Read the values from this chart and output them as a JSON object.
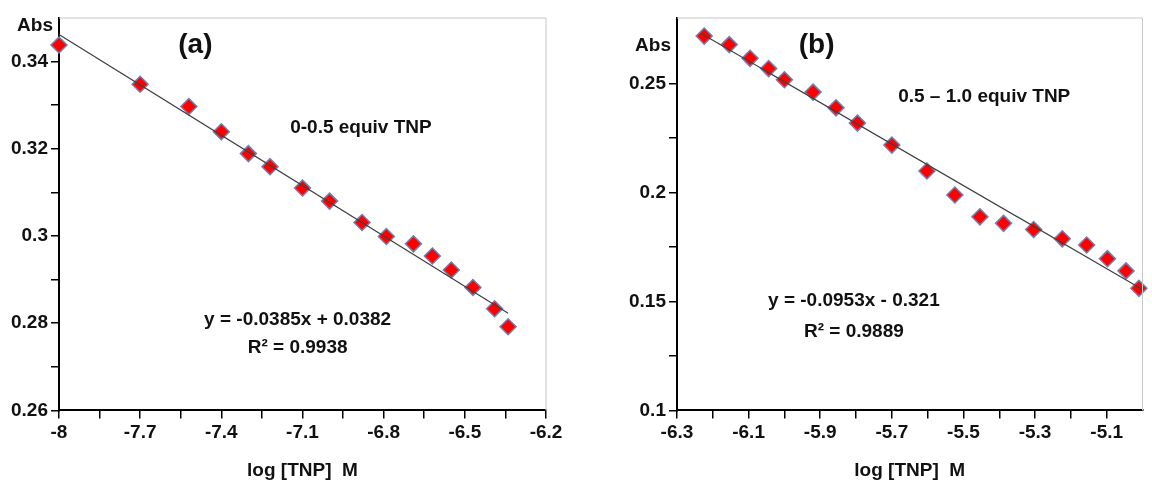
{
  "chart_data": [
    {
      "type": "scatter",
      "title": "(a)",
      "xlabel": "log [TNP]  M",
      "ylabel": "Abs",
      "xlim": [
        -8,
        -6.2
      ],
      "xticks": [
        -8,
        {
          "value": -7.85,
          "label": null
        },
        -7.7,
        {
          "value": -7.55,
          "label": null
        },
        -7.4,
        {
          "value": -7.25,
          "label": null
        },
        -7.1,
        {
          "value": -6.95,
          "label": null
        },
        -6.8,
        {
          "value": -6.65,
          "label": null
        },
        -6.5,
        {
          "value": -6.35,
          "label": null
        },
        -6.2
      ],
      "ylim": [
        0.26,
        0.35
      ],
      "yticks": [
        0.26,
        {
          "value": 0.27,
          "label": null
        },
        0.28,
        {
          "value": 0.29,
          "label": null
        },
        0.3,
        {
          "value": 0.31,
          "label": null
        },
        0.32,
        {
          "value": 0.33,
          "label": null
        },
        0.34
      ],
      "grid": false,
      "legend": false,
      "marker": "diamond",
      "series": [
        {
          "color": "#ff0000",
          "x": [
            -8,
            -7.7,
            -7.52,
            -7.4,
            -7.3,
            -7.22,
            -7.1,
            -7.0,
            -6.88,
            -6.79,
            -6.69,
            -6.62,
            -6.55,
            -6.47,
            -6.39,
            -6.34
          ],
          "values": [
            0.3438,
            0.3348,
            0.3297,
            0.3239,
            0.3189,
            0.3159,
            0.311,
            0.308,
            0.3031,
            0.2999,
            0.2982,
            0.2954,
            0.2922,
            0.2882,
            0.2833,
            0.2792
          ]
        },
        {
          "type": "line",
          "color": "#404040",
          "marker": "none",
          "x": [
            -8,
            -6.34
          ],
          "values": [
            0.3462,
            0.2823
          ]
        }
      ],
      "annotations": [
        "0-0.5 equiv TNP",
        "y = -0.0385x + 0.0382",
        "R² = 0.9938"
      ]
    },
    {
      "type": "scatter",
      "title": "(b)",
      "xlabel": "log [TNP]  M",
      "ylabel": "Abs",
      "xlim": [
        -6.3,
        -5.0
      ],
      "xticks": [
        -6.3,
        {
          "value": -6.2,
          "label": null
        },
        -6.1,
        {
          "value": -6.0,
          "label": null
        },
        -5.9,
        {
          "value": -5.8,
          "label": null
        },
        -5.7,
        {
          "value": -5.6,
          "label": null
        },
        -5.5,
        {
          "value": -5.4,
          "label": null
        },
        -5.3,
        {
          "value": -5.2,
          "label": null
        },
        -5.1
      ],
      "ylim": [
        0.1,
        0.28
      ],
      "yticks": [
        0.1,
        {
          "value": 0.125,
          "label": null
        },
        0.15,
        {
          "value": 0.175,
          "label": null
        },
        0.2,
        {
          "value": 0.225,
          "label": null
        },
        0.25
      ],
      "grid": false,
      "legend": false,
      "marker": "diamond",
      "series": [
        {
          "color": "#ff0000",
          "x": [
            -6.224,
            -6.154,
            -6.096,
            -6.044,
            -6.0,
            -5.92,
            -5.856,
            -5.796,
            -5.7,
            -5.602,
            -5.524,
            -5.454,
            -5.388,
            -5.304,
            -5.224,
            -5.156,
            -5.098,
            -5.046,
            -5.01
          ],
          "values": [
            0.2717,
            0.2678,
            0.2615,
            0.2568,
            0.2517,
            0.246,
            0.2388,
            0.2318,
            0.2217,
            0.2098,
            0.1988,
            0.1888,
            0.1858,
            0.183,
            0.1787,
            0.1759,
            0.1696,
            0.164,
            0.156
          ]
        },
        {
          "type": "line",
          "color": "#404040",
          "marker": "none",
          "x": [
            -6.23,
            -5.0
          ],
          "values": [
            0.2727,
            0.1555
          ]
        }
      ],
      "annotations": [
        "0.5 – 1.0 equiv TNP",
        "y = -0.0953x - 0.321",
        "R² = 0.9889"
      ]
    }
  ]
}
